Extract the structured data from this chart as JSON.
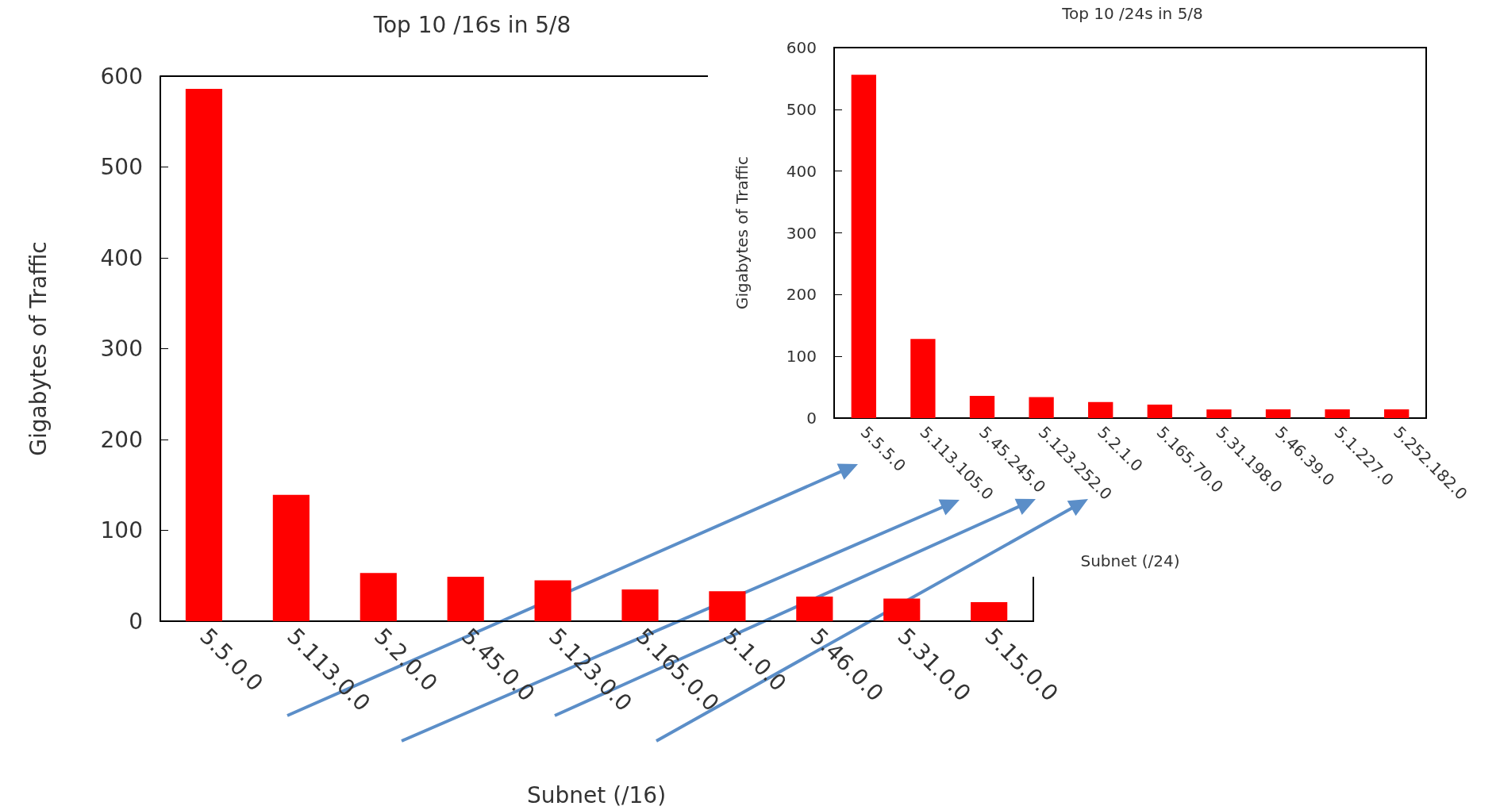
{
  "chart_data": [
    {
      "type": "bar",
      "title": "Top 10 /16s in 5/8",
      "xlabel": "Subnet (/16)",
      "ylabel": "Gigabytes of Traffic",
      "categories": [
        "5.5.0.0",
        "5.113.0.0",
        "5.2.0.0",
        "5.45.0.0",
        "5.123.0.0",
        "5.165.0.0",
        "5.1.0.0",
        "5.46.0.0",
        "5.31.0.0",
        "5.15.0.0"
      ],
      "values": [
        586,
        139,
        53,
        49,
        45,
        35,
        33,
        27,
        25,
        21
      ],
      "color": "#ff0000",
      "ylim": [
        0,
        600
      ],
      "yticks": [
        0,
        100,
        200,
        300,
        400,
        500,
        600
      ],
      "grid": false
    },
    {
      "type": "bar",
      "title": "Top 10 /24s in 5/8",
      "xlabel": "Subnet (/24)",
      "ylabel": "Gigabytes of Traffic",
      "categories": [
        "5.5.5.0",
        "5.113.105.0",
        "5.45.245.0",
        "5.123.252.0",
        "5.2.1.0",
        "5.165.70.0",
        "5.31.198.0",
        "5.46.39.0",
        "5.1.227.0",
        "5.252.182.0"
      ],
      "values": [
        556,
        128,
        36,
        34,
        26,
        22,
        14,
        14,
        14,
        14
      ],
      "color": "#ff0000",
      "ylim": [
        0,
        600
      ],
      "yticks": [
        0,
        100,
        200,
        300,
        400,
        500,
        600
      ],
      "grid": false
    }
  ]
}
